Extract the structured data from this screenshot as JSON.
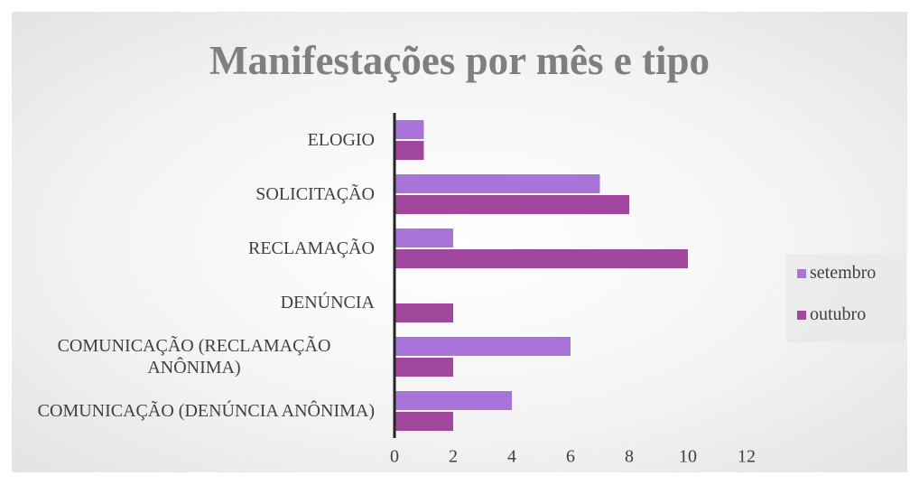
{
  "chart_data": {
    "type": "bar",
    "orientation": "horizontal",
    "title": "Manifestações por mês e tipo",
    "categories": [
      "ELOGIO",
      "SOLICITAÇÃO",
      "RECLAMAÇÃO",
      "DENÚNCIA",
      "COMUNICAÇÃO (RECLAMAÇÃO ANÔNIMA)",
      "COMUNICAÇÃO (DENÚNCIA ANÔNIMA)"
    ],
    "series": [
      {
        "name": "setembro",
        "color": "#a874d9",
        "values": [
          1,
          7,
          2,
          0,
          6,
          4
        ]
      },
      {
        "name": "outubro",
        "color": "#a1479d",
        "values": [
          1,
          8,
          10,
          2,
          2,
          2
        ]
      }
    ],
    "xlim": [
      0,
      12
    ],
    "xticks": [
      0,
      2,
      4,
      6,
      8,
      10,
      12
    ],
    "grid": false,
    "legend": "right"
  }
}
